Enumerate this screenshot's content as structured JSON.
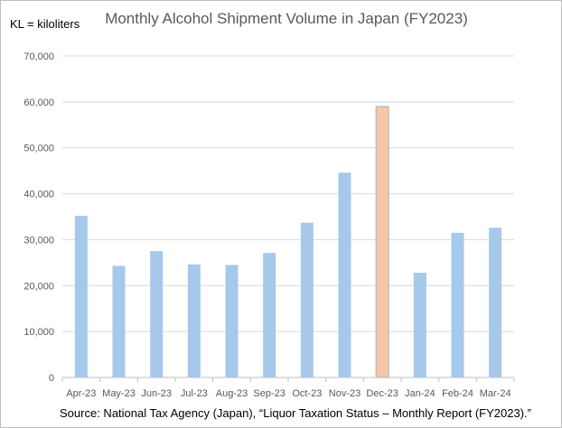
{
  "chart_data": {
    "type": "bar",
    "title": "Monthly Alcohol Shipment Volume in Japan (FY2023)",
    "unit_note": "KL = kiloliters",
    "source": "Source: National Tax Agency (Japan), “Liquor Taxation Status – Monthly Report (FY2023).”",
    "xlabel": "",
    "ylabel": "",
    "ylim": [
      0,
      70000
    ],
    "yticks": [
      0,
      10000,
      20000,
      30000,
      40000,
      50000,
      60000,
      70000
    ],
    "ytick_labels": [
      "0",
      "10,000",
      "20,000",
      "30,000",
      "40,000",
      "50,000",
      "60,000",
      "70,000"
    ],
    "grid": true,
    "categories": [
      "Apr-23",
      "May-23",
      "Jun-23",
      "Jul-23",
      "Aug-23",
      "Sep-23",
      "Oct-23",
      "Nov-23",
      "Dec-23",
      "Jan-24",
      "Feb-24",
      "Mar-24"
    ],
    "values": [
      35200,
      24300,
      27500,
      24600,
      24500,
      27100,
      33700,
      44600,
      59000,
      22800,
      31500,
      32600
    ],
    "highlight_index": 8,
    "colors": {
      "bar": "#a6c8ea",
      "highlight": "#f7c6a8",
      "highlight_edge": "#b0b0b0",
      "grid": "#d9d9d9"
    }
  }
}
